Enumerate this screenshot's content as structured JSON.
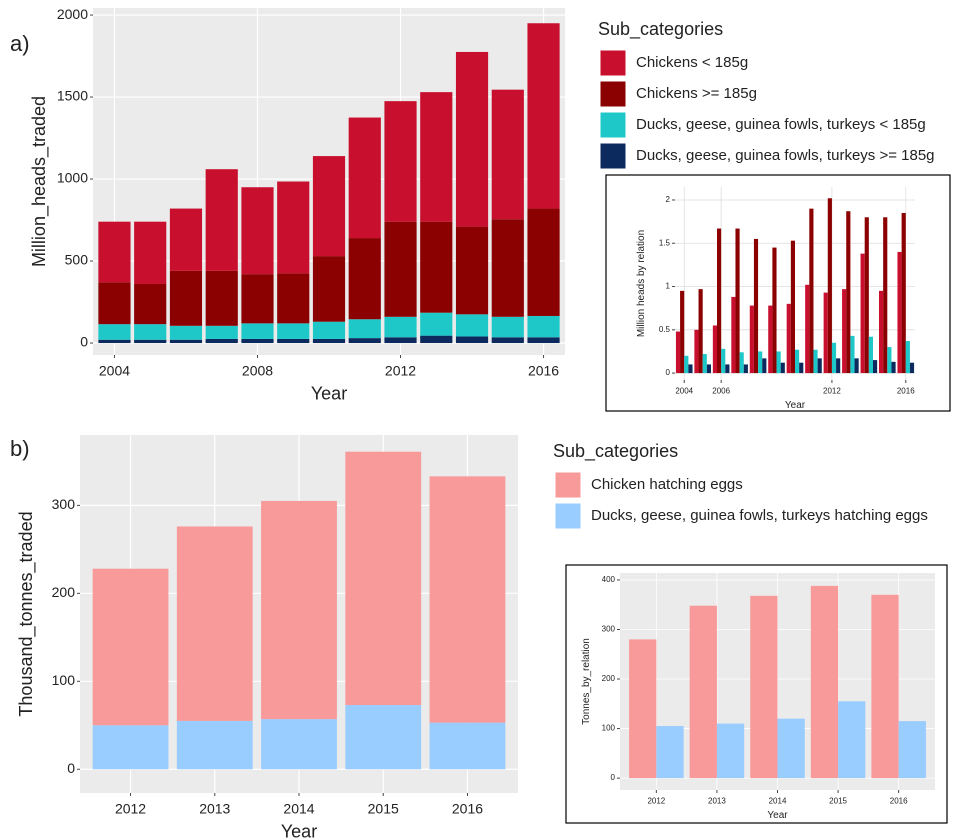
{
  "chart_data": [
    {
      "type": "bar",
      "stacked": true,
      "panel_label": "a)",
      "legend_title": "Sub_categories",
      "x_label": "Year",
      "y_label": "Million_heads_traded",
      "background": "#ebebeb",
      "grid_color": "#ffffff",
      "x": [
        2004,
        2005,
        2006,
        2007,
        2008,
        2009,
        2010,
        2011,
        2012,
        2013,
        2014,
        2015,
        2016
      ],
      "xlim": [
        2003.4,
        2016.6
      ],
      "xticks": [
        2004,
        2008,
        2012,
        2016
      ],
      "ylim": [
        -73,
        2043
      ],
      "yticks": [
        0,
        500,
        1000,
        1500,
        2000
      ],
      "grid": true,
      "series": [
        {
          "name": "Chickens < 185g",
          "color": "#c8102e",
          "values": [
            370,
            380,
            380,
            620,
            530,
            560,
            610,
            735,
            735,
            790,
            1065,
            790,
            1130
          ]
        },
        {
          "name": "Chickens >= 185g",
          "color": "#8b0000",
          "values": [
            255,
            245,
            335,
            335,
            300,
            305,
            400,
            495,
            580,
            555,
            535,
            595,
            655
          ]
        },
        {
          "name": "Ducks, geese, guinea fowls, turkeys < 185g",
          "color": "#1fc8c8",
          "values": [
            95,
            95,
            85,
            80,
            95,
            95,
            105,
            115,
            125,
            140,
            135,
            125,
            130
          ]
        },
        {
          "name": "Ducks, geese, guinea fowls, turkeys >= 185g",
          "color": "#0d2a5e",
          "values": [
            20,
            20,
            20,
            25,
            25,
            25,
            25,
            30,
            35,
            45,
            40,
            35,
            35
          ]
        }
      ]
    },
    {
      "type": "bar",
      "stacked": false,
      "x_label": "Year",
      "y_label": "Million heads by relation",
      "background": "#ffffff",
      "grid_color": "#dddddd",
      "x": [
        2004,
        2005,
        2006,
        2007,
        2008,
        2009,
        2010,
        2011,
        2012,
        2013,
        2014,
        2015,
        2016
      ],
      "xlim": [
        2003.5,
        2016.5
      ],
      "xticks": [
        2004,
        2006,
        2012,
        2016
      ],
      "ylim": [
        -0.08,
        2.15
      ],
      "yticks": [
        0,
        0.5,
        1,
        1.5,
        2
      ],
      "grid": true,
      "series": [
        {
          "color": "#c8102e",
          "values": [
            0.48,
            0.5,
            0.55,
            0.88,
            0.78,
            0.78,
            0.8,
            1.02,
            0.93,
            0.97,
            1.38,
            0.95,
            1.4
          ]
        },
        {
          "color": "#8b0000",
          "values": [
            0.95,
            0.97,
            1.67,
            1.67,
            1.55,
            1.45,
            1.53,
            1.9,
            2.02,
            1.87,
            1.8,
            1.8,
            1.85
          ]
        },
        {
          "color": "#1fc8c8",
          "values": [
            0.2,
            0.22,
            0.28,
            0.24,
            0.25,
            0.25,
            0.27,
            0.27,
            0.35,
            0.43,
            0.42,
            0.3,
            0.37
          ]
        },
        {
          "color": "#0d2a5e",
          "values": [
            0.1,
            0.1,
            0.1,
            0.1,
            0.17,
            0.12,
            0.12,
            0.17,
            0.17,
            0.17,
            0.15,
            0.13,
            0.12
          ]
        }
      ]
    },
    {
      "type": "bar",
      "stacked": true,
      "panel_label": "b)",
      "legend_title": "Sub_categories",
      "x_label": "Year",
      "y_label": "Thousand_tonnes_traded",
      "background": "#ebebeb",
      "grid_color": "#ffffff",
      "categories": [
        "2012",
        "2013",
        "2014",
        "2015",
        "2016"
      ],
      "ylim": [
        -27,
        380
      ],
      "yticks": [
        0,
        100,
        200,
        300
      ],
      "grid": true,
      "series": [
        {
          "name": "Chicken hatching eggs",
          "color": "#f8999a",
          "values": [
            178,
            221,
            248,
            288,
            280
          ]
        },
        {
          "name": "Ducks, geese, guinea fowls, turkeys hatching eggs",
          "color": "#99ccff",
          "values": [
            50,
            55,
            57,
            73,
            53
          ]
        }
      ]
    },
    {
      "type": "bar",
      "stacked": false,
      "x_label": "Year",
      "y_label": "Tonnes_by_relation",
      "background": "#ebebeb",
      "grid_color": "#ffffff",
      "categories": [
        "2012",
        "2013",
        "2014",
        "2015",
        "2016"
      ],
      "ylim": [
        -24,
        414
      ],
      "yticks": [
        0,
        100,
        200,
        300,
        400
      ],
      "grid": true,
      "series": [
        {
          "color": "#f8999a",
          "values": [
            280,
            348,
            368,
            388,
            370
          ]
        },
        {
          "color": "#99ccff",
          "values": [
            105,
            110,
            120,
            155,
            115
          ]
        }
      ]
    }
  ]
}
